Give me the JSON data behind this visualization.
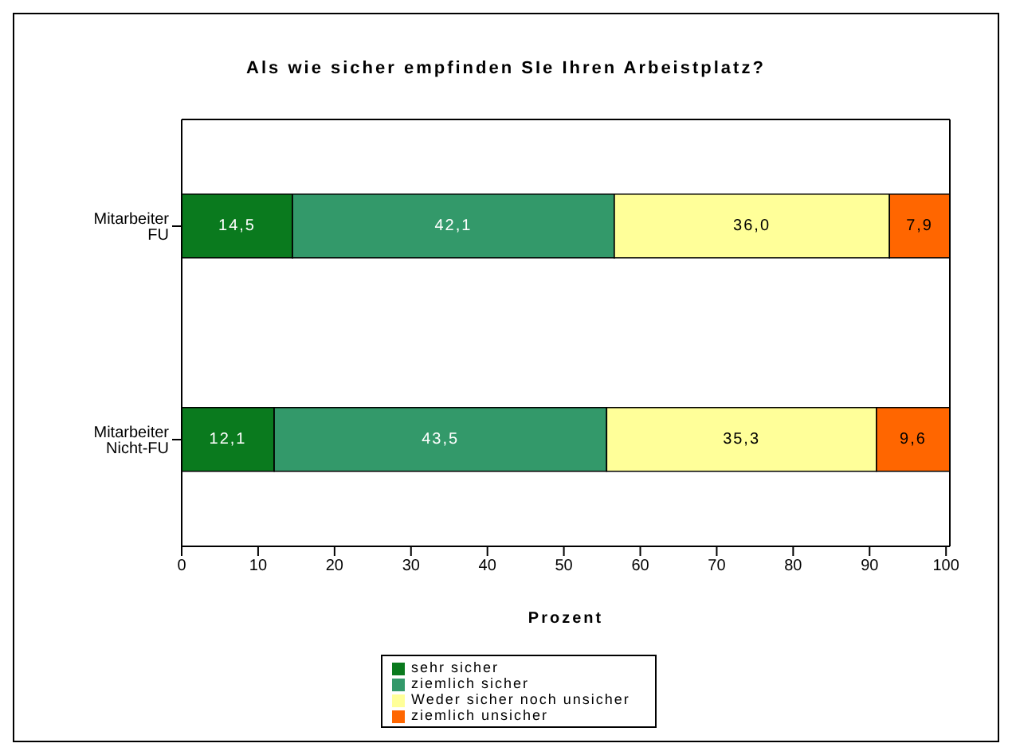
{
  "chart_data": {
    "type": "bar",
    "orientation": "horizontal",
    "stacked": true,
    "title": "Als wie sicher empfinden SIe Ihren Arbeistplatz?",
    "xlabel": "Prozent",
    "categories": [
      "Mitarbeiter FU",
      "Mitarbeiter Nicht-FU"
    ],
    "series": [
      {
        "name": "sehr sicher",
        "color": "#0a7a1e",
        "values": [
          14.5,
          12.1
        ],
        "value_labels": [
          "14,5",
          "12,1"
        ]
      },
      {
        "name": "ziemlich sicher",
        "color": "#33996a",
        "values": [
          42.1,
          43.5
        ],
        "value_labels": [
          "42,1",
          "43,5"
        ]
      },
      {
        "name": "Weder sicher noch unsicher",
        "color": "#ffff99",
        "values": [
          36.0,
          35.3
        ],
        "value_labels": [
          "36,0",
          "35,3"
        ]
      },
      {
        "name": "ziemlich unsicher",
        "color": "#ff6600",
        "values": [
          7.9,
          9.6
        ],
        "value_labels": [
          "7,9",
          "9,6"
        ]
      }
    ],
    "xlim": [
      0,
      100.5
    ],
    "xticks": [
      0,
      10,
      20,
      30,
      40,
      50,
      60,
      70,
      80,
      90,
      100
    ],
    "legend": "bottom",
    "grid": false
  }
}
